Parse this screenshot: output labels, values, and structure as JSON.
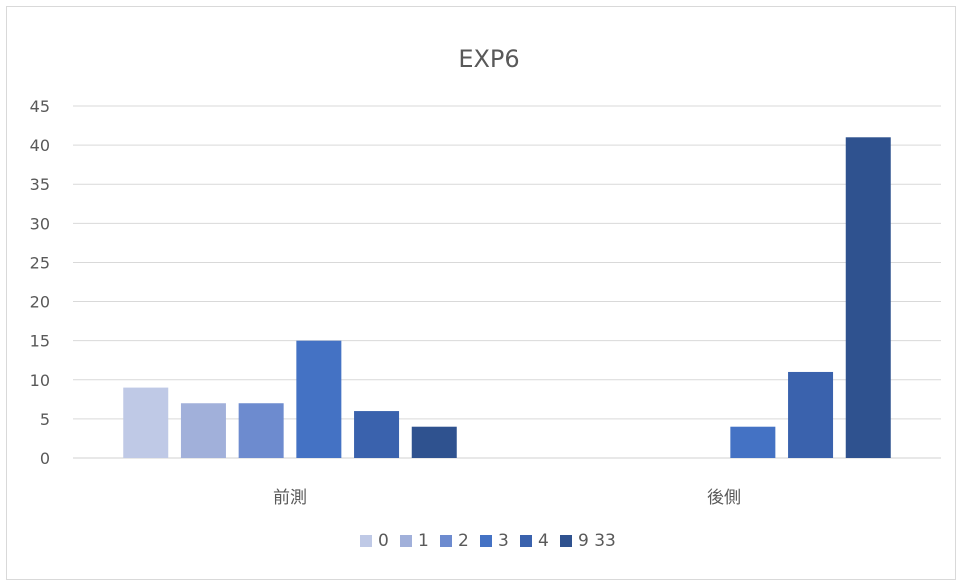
{
  "chart_data": {
    "type": "bar",
    "title": "EXP6",
    "xlabel": "",
    "ylabel": "",
    "ylim": [
      0,
      45
    ],
    "yticks": [
      0,
      5,
      10,
      15,
      20,
      25,
      30,
      35,
      40,
      45
    ],
    "grid": true,
    "legend_position": "bottom",
    "categories": [
      "前測",
      "後側"
    ],
    "series": [
      {
        "name": "0",
        "values": [
          9,
          0
        ],
        "color": "#bfc9e6"
      },
      {
        "name": "1",
        "values": [
          7,
          0
        ],
        "color": "#a1b0da"
      },
      {
        "name": "2",
        "values": [
          7,
          0
        ],
        "color": "#6d8bcf"
      },
      {
        "name": "3",
        "values": [
          15,
          4
        ],
        "color": "#4472c4"
      },
      {
        "name": "4",
        "values": [
          6,
          11
        ],
        "color": "#3a62ad"
      },
      {
        "name": "9 33",
        "values": [
          4,
          41
        ],
        "color": "#2f528f"
      }
    ]
  }
}
